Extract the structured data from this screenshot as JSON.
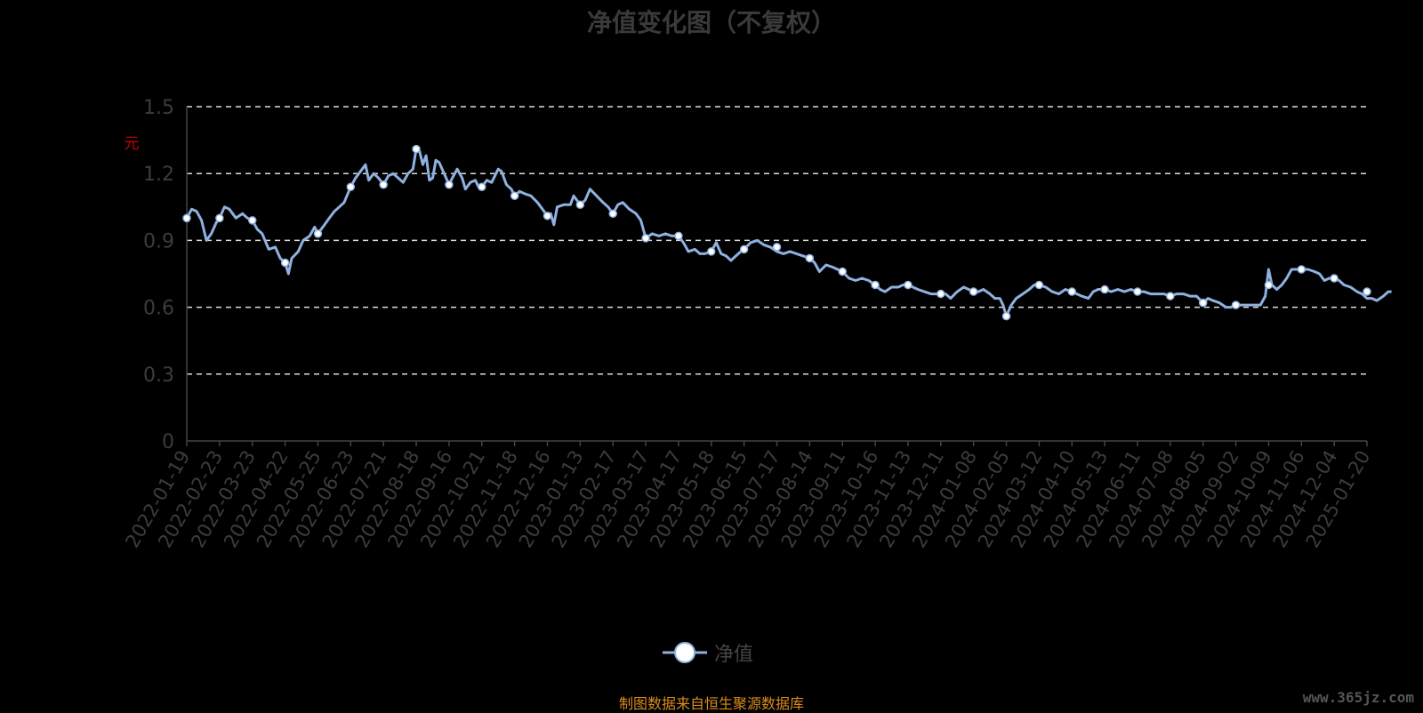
{
  "chart_data": {
    "type": "line",
    "title": "净值变化图（不复权）",
    "ylabel": "元",
    "ylim": [
      0,
      1.5
    ],
    "yticks": [
      "0",
      "0.3",
      "0.6",
      "0.9",
      "1.2",
      "1.5"
    ],
    "grid": true,
    "legend": "bottom-center",
    "x": [
      "2022-01-19",
      "2022-02-23",
      "2022-03-23",
      "2022-04-22",
      "2022-05-25",
      "2022-06-23",
      "2022-07-21",
      "2022-08-18",
      "2022-09-16",
      "2022-10-21",
      "2022-11-18",
      "2022-12-16",
      "2023-01-13",
      "2023-02-17",
      "2023-03-17",
      "2023-04-17",
      "2023-05-18",
      "2023-06-15",
      "2023-07-17",
      "2023-08-14",
      "2023-09-11",
      "2023-10-16",
      "2023-11-13",
      "2023-12-11",
      "2024-01-08",
      "2024-02-05",
      "2024-03-12",
      "2024-04-10",
      "2024-05-13",
      "2024-06-11",
      "2024-07-08",
      "2024-08-05",
      "2024-09-02",
      "2024-10-09",
      "2024-11-06",
      "2024-12-04",
      "2025-01-20"
    ],
    "series": [
      {
        "name": "净值",
        "color": "#8fb1e0",
        "values": [
          1.0,
          1.0,
          0.99,
          0.8,
          0.93,
          1.14,
          1.15,
          1.31,
          1.15,
          1.14,
          1.1,
          1.01,
          1.06,
          1.02,
          0.91,
          0.92,
          0.85,
          0.86,
          0.87,
          0.82,
          0.76,
          0.7,
          0.7,
          0.66,
          0.67,
          0.56,
          0.7,
          0.67,
          0.68,
          0.67,
          0.65,
          0.62,
          0.61,
          0.7,
          0.77,
          0.73,
          0.67
        ],
        "path": [
          [
            0,
            1.0
          ],
          [
            0.15,
            1.04
          ],
          [
            0.3,
            1.03
          ],
          [
            0.45,
            0.99
          ],
          [
            0.6,
            0.9
          ],
          [
            0.75,
            0.93
          ],
          [
            0.9,
            0.98
          ],
          [
            1.0,
            1.0
          ],
          [
            1.15,
            1.05
          ],
          [
            1.3,
            1.04
          ],
          [
            1.5,
            1.0
          ],
          [
            1.7,
            1.02
          ],
          [
            1.85,
            1.0
          ],
          [
            2.0,
            0.99
          ],
          [
            2.15,
            0.95
          ],
          [
            2.3,
            0.93
          ],
          [
            2.5,
            0.86
          ],
          [
            2.7,
            0.87
          ],
          [
            2.85,
            0.82
          ],
          [
            3.0,
            0.8
          ],
          [
            3.1,
            0.75
          ],
          [
            3.2,
            0.82
          ],
          [
            3.4,
            0.85
          ],
          [
            3.55,
            0.9
          ],
          [
            3.75,
            0.92
          ],
          [
            3.9,
            0.96
          ],
          [
            4.0,
            0.93
          ],
          [
            4.2,
            0.97
          ],
          [
            4.35,
            1.0
          ],
          [
            4.5,
            1.03
          ],
          [
            4.65,
            1.05
          ],
          [
            4.8,
            1.07
          ],
          [
            5.0,
            1.14
          ],
          [
            5.15,
            1.18
          ],
          [
            5.3,
            1.21
          ],
          [
            5.45,
            1.24
          ],
          [
            5.55,
            1.17
          ],
          [
            5.7,
            1.2
          ],
          [
            5.85,
            1.18
          ],
          [
            6.0,
            1.15
          ],
          [
            6.15,
            1.19
          ],
          [
            6.3,
            1.2
          ],
          [
            6.45,
            1.18
          ],
          [
            6.6,
            1.16
          ],
          [
            6.75,
            1.2
          ],
          [
            6.9,
            1.22
          ],
          [
            7.0,
            1.31
          ],
          [
            7.1,
            1.3
          ],
          [
            7.2,
            1.24
          ],
          [
            7.3,
            1.28
          ],
          [
            7.4,
            1.17
          ],
          [
            7.5,
            1.18
          ],
          [
            7.6,
            1.26
          ],
          [
            7.7,
            1.25
          ],
          [
            7.85,
            1.2
          ],
          [
            8.0,
            1.15
          ],
          [
            8.1,
            1.18
          ],
          [
            8.25,
            1.22
          ],
          [
            8.4,
            1.18
          ],
          [
            8.5,
            1.13
          ],
          [
            8.65,
            1.16
          ],
          [
            8.8,
            1.17
          ],
          [
            8.9,
            1.14
          ],
          [
            9.0,
            1.14
          ],
          [
            9.15,
            1.17
          ],
          [
            9.3,
            1.16
          ],
          [
            9.5,
            1.22
          ],
          [
            9.6,
            1.21
          ],
          [
            9.75,
            1.15
          ],
          [
            9.9,
            1.13
          ],
          [
            10.0,
            1.1
          ],
          [
            10.15,
            1.12
          ],
          [
            10.3,
            1.11
          ],
          [
            10.5,
            1.1
          ],
          [
            10.7,
            1.07
          ],
          [
            11.0,
            1.01
          ],
          [
            11.1,
            1.02
          ],
          [
            11.2,
            0.97
          ],
          [
            11.3,
            1.05
          ],
          [
            11.5,
            1.06
          ],
          [
            11.7,
            1.06
          ],
          [
            11.8,
            1.1
          ],
          [
            12.0,
            1.06
          ],
          [
            12.15,
            1.08
          ],
          [
            12.3,
            1.13
          ],
          [
            12.5,
            1.1
          ],
          [
            12.7,
            1.07
          ],
          [
            12.85,
            1.05
          ],
          [
            13.0,
            1.02
          ],
          [
            13.15,
            1.06
          ],
          [
            13.3,
            1.07
          ],
          [
            13.5,
            1.04
          ],
          [
            13.7,
            1.02
          ],
          [
            13.85,
            0.99
          ],
          [
            14.0,
            0.91
          ],
          [
            14.2,
            0.93
          ],
          [
            14.4,
            0.92
          ],
          [
            14.6,
            0.93
          ],
          [
            14.8,
            0.92
          ],
          [
            15.0,
            0.92
          ],
          [
            15.15,
            0.89
          ],
          [
            15.3,
            0.85
          ],
          [
            15.5,
            0.86
          ],
          [
            15.65,
            0.84
          ],
          [
            15.8,
            0.84
          ],
          [
            16.0,
            0.85
          ],
          [
            16.15,
            0.89
          ],
          [
            16.3,
            0.84
          ],
          [
            16.45,
            0.83
          ],
          [
            16.6,
            0.81
          ],
          [
            16.75,
            0.83
          ],
          [
            16.9,
            0.85
          ],
          [
            17.0,
            0.86
          ],
          [
            17.2,
            0.89
          ],
          [
            17.4,
            0.9
          ],
          [
            17.6,
            0.88
          ],
          [
            17.8,
            0.87
          ],
          [
            18.0,
            0.85
          ],
          [
            18.2,
            0.84
          ],
          [
            18.4,
            0.85
          ],
          [
            18.6,
            0.84
          ],
          [
            18.8,
            0.83
          ],
          [
            19.0,
            0.82
          ],
          [
            19.15,
            0.8
          ],
          [
            19.3,
            0.76
          ],
          [
            19.5,
            0.79
          ],
          [
            19.7,
            0.78
          ],
          [
            19.85,
            0.77
          ],
          [
            20.0,
            0.76
          ],
          [
            20.2,
            0.73
          ],
          [
            20.4,
            0.72
          ],
          [
            20.6,
            0.73
          ],
          [
            20.8,
            0.72
          ],
          [
            21.0,
            0.7
          ],
          [
            21.15,
            0.68
          ],
          [
            21.3,
            0.67
          ],
          [
            21.5,
            0.69
          ],
          [
            21.7,
            0.69
          ],
          [
            21.85,
            0.7
          ],
          [
            22.0,
            0.7
          ],
          [
            22.15,
            0.69
          ],
          [
            22.3,
            0.68
          ],
          [
            22.5,
            0.67
          ],
          [
            22.7,
            0.66
          ],
          [
            22.85,
            0.66
          ],
          [
            23.0,
            0.66
          ],
          [
            23.15,
            0.66
          ],
          [
            23.3,
            0.64
          ],
          [
            23.5,
            0.67
          ],
          [
            23.7,
            0.69
          ],
          [
            23.85,
            0.68
          ],
          [
            24.0,
            0.67
          ],
          [
            24.15,
            0.67
          ],
          [
            24.3,
            0.68
          ],
          [
            24.5,
            0.66
          ],
          [
            24.65,
            0.64
          ],
          [
            24.8,
            0.64
          ],
          [
            24.9,
            0.61
          ],
          [
            25.0,
            0.56
          ],
          [
            25.15,
            0.61
          ],
          [
            25.3,
            0.64
          ],
          [
            25.5,
            0.66
          ],
          [
            25.7,
            0.68
          ],
          [
            25.85,
            0.7
          ],
          [
            26.0,
            0.7
          ],
          [
            26.2,
            0.69
          ],
          [
            26.4,
            0.67
          ],
          [
            26.6,
            0.66
          ],
          [
            26.8,
            0.68
          ],
          [
            27.0,
            0.67
          ],
          [
            27.15,
            0.66
          ],
          [
            27.3,
            0.65
          ],
          [
            27.5,
            0.64
          ],
          [
            27.65,
            0.67
          ],
          [
            27.8,
            0.68
          ],
          [
            28.0,
            0.68
          ],
          [
            28.2,
            0.67
          ],
          [
            28.4,
            0.68
          ],
          [
            28.6,
            0.67
          ],
          [
            28.8,
            0.68
          ],
          [
            29.0,
            0.67
          ],
          [
            29.2,
            0.67
          ],
          [
            29.4,
            0.66
          ],
          [
            29.6,
            0.66
          ],
          [
            29.8,
            0.66
          ],
          [
            30.0,
            0.65
          ],
          [
            30.2,
            0.66
          ],
          [
            30.4,
            0.66
          ],
          [
            30.6,
            0.65
          ],
          [
            30.8,
            0.65
          ],
          [
            31.0,
            0.62
          ],
          [
            31.15,
            0.64
          ],
          [
            31.3,
            0.63
          ],
          [
            31.5,
            0.62
          ],
          [
            31.7,
            0.6
          ],
          [
            31.85,
            0.6
          ],
          [
            32.0,
            0.61
          ],
          [
            32.2,
            0.61
          ],
          [
            32.4,
            0.61
          ],
          [
            32.6,
            0.61
          ],
          [
            32.75,
            0.61
          ],
          [
            32.9,
            0.65
          ],
          [
            33.0,
            0.77
          ],
          [
            33.1,
            0.7
          ],
          [
            33.25,
            0.68
          ],
          [
            33.4,
            0.7
          ],
          [
            33.55,
            0.73
          ],
          [
            33.7,
            0.77
          ],
          [
            33.85,
            0.77
          ],
          [
            34.0,
            0.77
          ],
          [
            34.2,
            0.77
          ],
          [
            34.4,
            0.76
          ],
          [
            34.55,
            0.75
          ],
          [
            34.7,
            0.72
          ],
          [
            34.85,
            0.73
          ],
          [
            35.0,
            0.73
          ],
          [
            35.15,
            0.72
          ],
          [
            35.3,
            0.7
          ],
          [
            35.5,
            0.69
          ],
          [
            35.7,
            0.67
          ],
          [
            35.85,
            0.66
          ],
          [
            36.0,
            0.64
          ],
          [
            36.15,
            0.64
          ],
          [
            36.3,
            0.63
          ],
          [
            36.5,
            0.65
          ],
          [
            36.65,
            0.67
          ],
          [
            36.75,
            0.67
          ]
        ]
      }
    ]
  },
  "legend": {
    "label": "净值"
  },
  "footer": {
    "source": "制图数据来自恒生聚源数据库",
    "watermark": "www.365jz.com"
  }
}
